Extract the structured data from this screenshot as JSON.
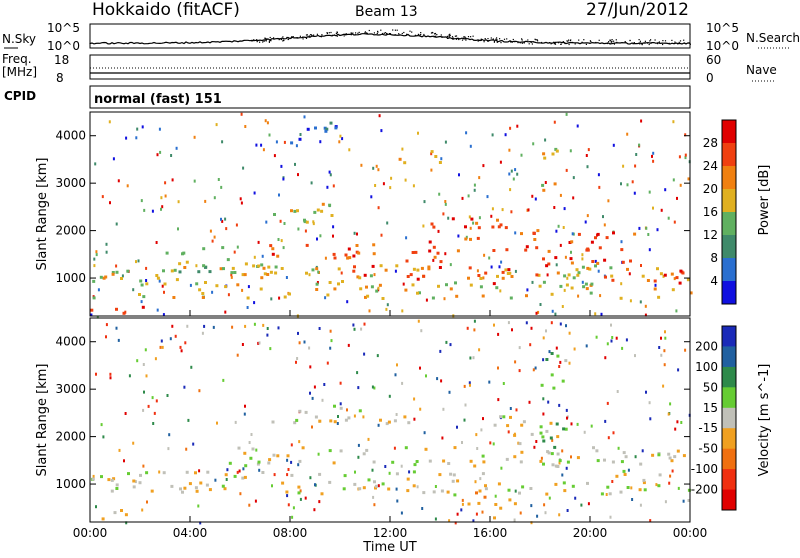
{
  "header": {
    "station": "Hokkaido (fitACF)",
    "beam": "Beam 13",
    "date": "27/Jun/2012"
  },
  "noise_panel": {
    "left_label": "N.Sky",
    "right_label": "N.Search",
    "left_ticks": [
      "10^5",
      "10^0"
    ],
    "right_ticks": [
      "10^5",
      "10^0"
    ]
  },
  "freq_panel": {
    "left_label_1": "Freq.",
    "left_label_2": "[MHz]",
    "right_label": "Nave",
    "left_ticks": [
      "18",
      "8"
    ],
    "right_ticks": [
      "60",
      "0"
    ]
  },
  "cpid": {
    "label": "CPID",
    "value": "normal (fast) 151"
  },
  "colors": {
    "power_scale": [
      "#1010e0",
      "#2a6fd0",
      "#3f8a6a",
      "#60b060",
      "#e0b020",
      "#f08010",
      "#f04010",
      "#e00000"
    ],
    "velocity_scale": [
      "#1a2ab8",
      "#2060a0",
      "#2e8a4a",
      "#66cc33",
      "#c0c0b8",
      "#f0a020",
      "#f07010",
      "#f03010",
      "#e00000"
    ]
  },
  "chart_data": [
    {
      "type": "heatmap",
      "quantity": "Power",
      "ylabel": "Slant Range [km]",
      "colorbar_label": "Power [dB]",
      "colorbar_ticks": [
        "4",
        "8",
        "12",
        "16",
        "20",
        "24",
        "28"
      ],
      "ylim": [
        200,
        4500
      ],
      "y_ticks": [
        "1000",
        "2000",
        "3000",
        "4000"
      ],
      "x_ticks": [
        "00:00",
        "04:00",
        "08:00",
        "12:00",
        "16:00",
        "20:00",
        "00:00"
      ],
      "bands": [
        {
          "t": [
            0,
            3.5
          ],
          "r": [
            280,
            420
          ],
          "level": 7
        },
        {
          "t": [
            0,
            24
          ],
          "r": [
            600,
            1300
          ],
          "level": 4
        },
        {
          "t": [
            3,
            7
          ],
          "r": [
            1100,
            1700
          ],
          "level": 3
        },
        {
          "t": [
            6.5,
            12
          ],
          "r": [
            1450,
            1750
          ],
          "level": 6
        },
        {
          "t": [
            10,
            14
          ],
          "r": [
            1000,
            1600
          ],
          "level": 6
        },
        {
          "t": [
            13,
            18
          ],
          "r": [
            1600,
            2300
          ],
          "level": 6
        },
        {
          "t": [
            15,
            18
          ],
          "r": [
            900,
            1250
          ],
          "level": 6
        },
        {
          "t": [
            18,
            22
          ],
          "r": [
            1200,
            2000
          ],
          "level": 6
        },
        {
          "t": [
            20.5,
            24
          ],
          "r": [
            900,
            1200
          ],
          "level": 6
        },
        {
          "t": [
            7,
            10
          ],
          "r": [
            2200,
            2700
          ],
          "level": 4
        },
        {
          "t": [
            12,
            14
          ],
          "r": [
            3400,
            3700
          ],
          "level": 4
        },
        {
          "t": [
            18,
            19
          ],
          "r": [
            2800,
            3800
          ],
          "level": 4
        },
        {
          "t": [
            8,
            10
          ],
          "r": [
            3800,
            4400
          ],
          "level": 1
        }
      ]
    },
    {
      "type": "heatmap",
      "quantity": "Velocity",
      "ylabel": "Slant Range [km]",
      "colorbar_label": "Velocity [m s^-1]",
      "colorbar_ticks": [
        "200",
        "100",
        "50",
        "15",
        "-15",
        "-50",
        "-100",
        "-200"
      ],
      "ylim": [
        200,
        4500
      ],
      "y_ticks": [
        "1000",
        "2000",
        "3000",
        "4000"
      ],
      "x_ticks": [
        "00:00",
        "04:00",
        "08:00",
        "12:00",
        "16:00",
        "20:00",
        "00:00"
      ],
      "xlabel": "Time UT",
      "bands": [
        {
          "t": [
            0,
            24
          ],
          "r": [
            800,
            1300
          ],
          "level": 4
        },
        {
          "t": [
            4,
            24
          ],
          "r": [
            1400,
            1800
          ],
          "level": 4
        },
        {
          "t": [
            16,
            19
          ],
          "r": [
            2000,
            2500
          ],
          "level": 4
        },
        {
          "t": [
            17,
            19
          ],
          "r": [
            1700,
            2300
          ],
          "level": 3
        },
        {
          "t": [
            15,
            17
          ],
          "r": [
            300,
            900
          ],
          "level": 5
        },
        {
          "t": [
            0,
            2
          ],
          "r": [
            250,
            500
          ],
          "level": 5
        },
        {
          "t": [
            18,
            19
          ],
          "r": [
            2800,
            3800
          ],
          "level": 3
        },
        {
          "t": [
            7,
            13
          ],
          "r": [
            2300,
            2700
          ],
          "level": 4
        }
      ]
    }
  ]
}
